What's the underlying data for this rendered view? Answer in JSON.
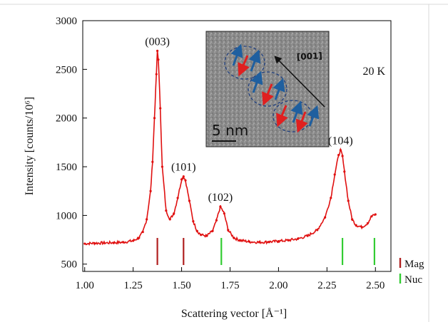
{
  "chart_data": {
    "type": "line",
    "xlabel": "Scattering vector [Å⁻¹]",
    "ylabel": "Intensity [counts/10⁶]",
    "xlim": [
      0.99,
      2.58
    ],
    "ylim": [
      425,
      3000
    ],
    "x_ticks": [
      "1.00",
      "1.25",
      "1.50",
      "1.75",
      "2.00",
      "2.25",
      "2.50"
    ],
    "y_ticks": [
      "500",
      "1000",
      "1500",
      "2000",
      "2500",
      "3000"
    ],
    "temperature_label": "20 K",
    "series": [
      {
        "color": "#e01010",
        "x": [
          1.0,
          1.05,
          1.1,
          1.15,
          1.2,
          1.25,
          1.28,
          1.3,
          1.32,
          1.34,
          1.35,
          1.36,
          1.37,
          1.375,
          1.38,
          1.39,
          1.4,
          1.42,
          1.44,
          1.46,
          1.48,
          1.5,
          1.51,
          1.52,
          1.54,
          1.56,
          1.58,
          1.6,
          1.63,
          1.66,
          1.68,
          1.7,
          1.72,
          1.74,
          1.77,
          1.8,
          1.85,
          1.9,
          1.95,
          2.0,
          2.05,
          2.1,
          2.15,
          2.2,
          2.24,
          2.27,
          2.29,
          2.31,
          2.32,
          2.33,
          2.34,
          2.36,
          2.38,
          2.4,
          2.43,
          2.46,
          2.48,
          2.5
        ],
        "y": [
          710,
          715,
          718,
          720,
          725,
          740,
          770,
          830,
          960,
          1250,
          1550,
          2000,
          2450,
          2690,
          2600,
          2100,
          1500,
          1050,
          960,
          1020,
          1180,
          1370,
          1400,
          1360,
          1150,
          940,
          840,
          800,
          790,
          840,
          950,
          1090,
          1020,
          850,
          770,
          745,
          730,
          725,
          728,
          735,
          745,
          760,
          790,
          850,
          980,
          1180,
          1420,
          1620,
          1670,
          1610,
          1450,
          1150,
          960,
          900,
          880,
          920,
          990,
          1010
        ]
      }
    ],
    "peak_labels": [
      {
        "text": "(003)",
        "x": 1.375,
        "y": 2720
      },
      {
        "text": "(101)",
        "x": 1.51,
        "y": 1430
      },
      {
        "text": "(102)",
        "x": 1.7,
        "y": 1120
      },
      {
        "text": "(104)",
        "x": 2.32,
        "y": 1700
      }
    ],
    "reflection_markers": [
      {
        "x": 1.375,
        "kind": "Mag",
        "color": "#b02020"
      },
      {
        "x": 1.51,
        "kind": "Mag",
        "color": "#b02020"
      },
      {
        "x": 1.705,
        "kind": "Nuc",
        "color": "#33cc33"
      },
      {
        "x": 2.33,
        "kind": "Nuc",
        "color": "#33cc33"
      },
      {
        "x": 2.495,
        "kind": "Nuc",
        "color": "#33cc33"
      }
    ],
    "legend": [
      {
        "label": "Mag",
        "color": "#b02020"
      },
      {
        "label": "Nuc",
        "color": "#33cc33"
      }
    ],
    "inset": {
      "scale_bar_label": "5 nm",
      "direction_label": "[001]"
    }
  }
}
